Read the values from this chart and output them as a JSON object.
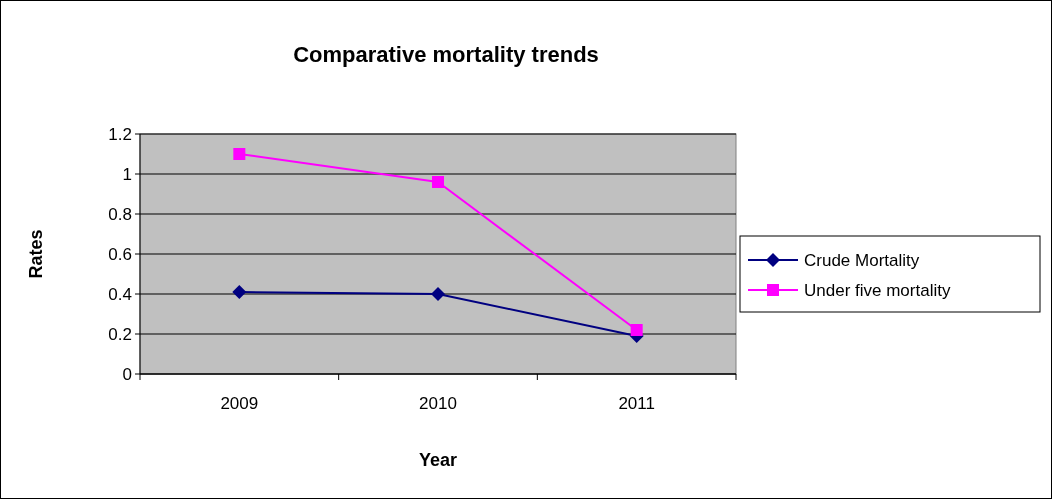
{
  "chart_data": {
    "type": "line",
    "title": "Comparative mortality trends",
    "xlabel": "Year",
    "ylabel": "Rates",
    "categories": [
      "2009",
      "2010",
      "2011"
    ],
    "series": [
      {
        "name": "Crude Mortality",
        "color": "#000080",
        "marker": "diamond",
        "values": [
          0.41,
          0.4,
          0.19
        ]
      },
      {
        "name": "Under five mortality",
        "color": "#ff00ff",
        "marker": "square",
        "values": [
          1.1,
          0.96,
          0.22
        ]
      }
    ],
    "ylim": [
      0,
      1.2
    ],
    "yticks": [
      0,
      0.2,
      0.4,
      0.6,
      0.8,
      1,
      1.2
    ],
    "grid": "y",
    "legend": "right",
    "line_style": "solid"
  }
}
